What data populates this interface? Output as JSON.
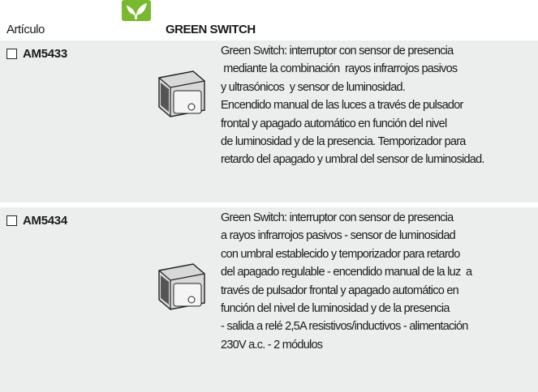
{
  "header": {
    "label": "Artículo",
    "title": "GREEN SWITCH"
  },
  "rows": [
    {
      "code": "AM5433",
      "description_lines": [
        "Green Switch: interruptor con sensor de presencia",
        " mediante la combinación  rayos infrarrojos pasivos",
        "y ultrasónicos  y sensor de luminosidad.",
        "Encendido manual de las luces a través de pulsador",
        "frontal y apagado automático en función del nivel",
        "de luminosidad y de la presencia. Temporizador para",
        "retardo del apagado y umbral del sensor de luminosidad."
      ]
    },
    {
      "code": "AM5434",
      "description_lines": [
        "Green Switch: interruptor con sensor de presencia",
        "a rayos infrarrojos pasivos - sensor de luminosidad",
        "con umbral establecido y temporizador para retardo",
        "del apagado regulable - encendido manual de la luz  a",
        "través de pulsador frontal y apagado automático en",
        "función del nivel de luminosidad y de la presencia",
        "- salida a relé 2,5A resistivos/inductivos - alimentación",
        "230V a.c. - 2 módulos"
      ]
    }
  ]
}
